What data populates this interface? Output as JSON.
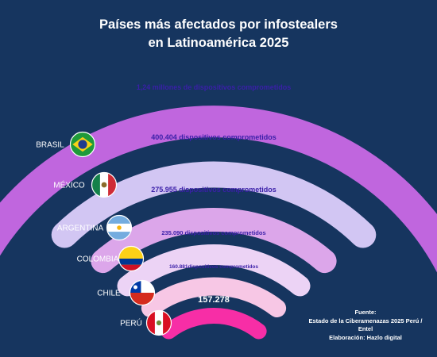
{
  "title_line1": "Países más afectados por infostealers",
  "title_line2": "en Latinoamérica 2025",
  "source": {
    "label": "Fuente:",
    "line1": "Estado de la Ciberamenazas 2025 Perú /",
    "line2": "Entel",
    "credit": "Elaboración: Hazlo digital"
  },
  "colors": {
    "background": "#16355f",
    "title": "#ffffff",
    "country_label": "#ffffff",
    "value_label": "#3a1fa8"
  },
  "chart_data": {
    "type": "bar",
    "title": "Países más afectados por infostealers en Latinoamérica 2025",
    "categories": [
      "BRASIL",
      "MÉXICO",
      "ARGENTINA",
      "COLOMBIA",
      "CHILE",
      "PERÚ"
    ],
    "values": [
      1240000,
      400404,
      275955,
      235090,
      160881,
      157278
    ],
    "data_labels": [
      "1,24 millones de dispositivos comprometidos",
      "400.404 dispositivos comprometidos",
      "275.955 dispositivos comprometidos",
      "235.090 dispositivos comprometidos",
      "160.881dispositivos comprometidos",
      "157.278"
    ],
    "arc_colors": [
      "#c066de",
      "#d2c6f3",
      "#dca6ea",
      "#ecd3f5",
      "#f7c7e5",
      "#f72ea6"
    ],
    "flags": [
      "brazil-flag",
      "mexico-flag",
      "argentina-flag",
      "colombia-flag",
      "chile-flag",
      "peru-flag"
    ]
  }
}
